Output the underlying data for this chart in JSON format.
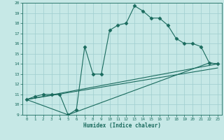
{
  "title": "",
  "xlabel": "Humidex (Indice chaleur)",
  "xlim": [
    -0.5,
    23.5
  ],
  "ylim": [
    9,
    20
  ],
  "xticks": [
    0,
    1,
    2,
    3,
    4,
    5,
    6,
    7,
    8,
    9,
    10,
    11,
    12,
    13,
    14,
    15,
    16,
    17,
    18,
    19,
    20,
    21,
    22,
    23
  ],
  "yticks": [
    9,
    10,
    11,
    12,
    13,
    14,
    15,
    16,
    17,
    18,
    19,
    20
  ],
  "bg_color": "#c6e8e6",
  "line_color": "#1a6b5e",
  "grid_color": "#9ecece",
  "line1_x": [
    0,
    1,
    2,
    3,
    4,
    5,
    6,
    7,
    8,
    9,
    10,
    11,
    12,
    13,
    14,
    15,
    16,
    17,
    18,
    19,
    20,
    21,
    22,
    23
  ],
  "line1_y": [
    10.5,
    10.8,
    11.0,
    11.0,
    11.0,
    9.0,
    9.5,
    15.7,
    13.0,
    13.0,
    17.3,
    17.8,
    18.0,
    19.7,
    19.2,
    18.5,
    18.5,
    17.8,
    16.5,
    16.0,
    16.0,
    15.7,
    14.1,
    14.0
  ],
  "line2_x": [
    0,
    5,
    22,
    23
  ],
  "line2_y": [
    10.5,
    9.0,
    14.1,
    14.0
  ],
  "line3_x": [
    0,
    23
  ],
  "line3_y": [
    10.5,
    14.0
  ],
  "line4_x": [
    0,
    23
  ],
  "line4_y": [
    10.5,
    13.6
  ]
}
